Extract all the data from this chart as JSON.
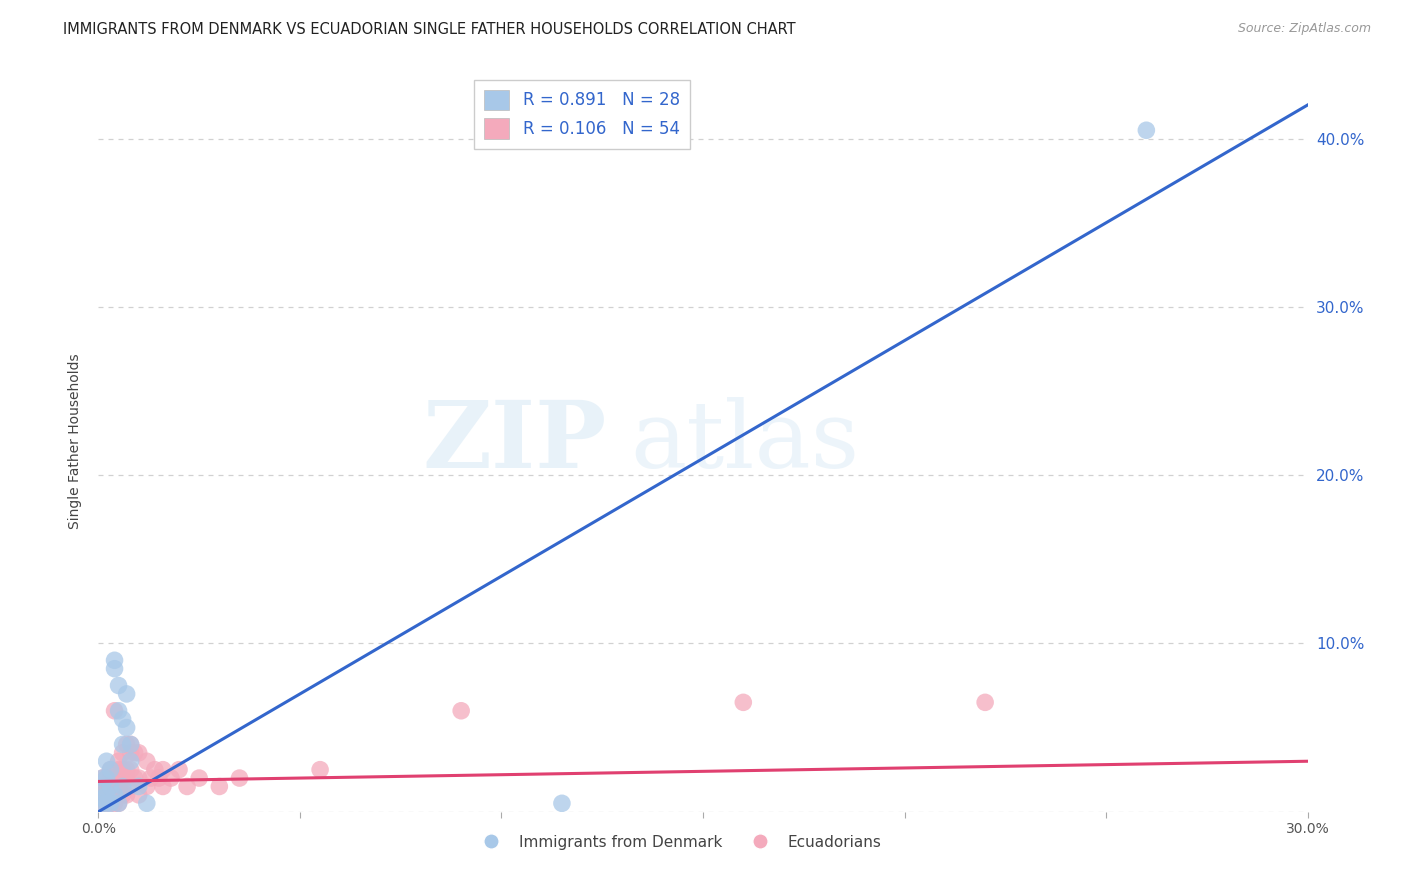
{
  "title": "IMMIGRANTS FROM DENMARK VS ECUADORIAN SINGLE FATHER HOUSEHOLDS CORRELATION CHART",
  "source": "Source: ZipAtlas.com",
  "ylabel": "Single Father Households",
  "xlim": [
    0.0,
    0.3
  ],
  "ylim": [
    0.0,
    0.44
  ],
  "xticks": [
    0.0,
    0.05,
    0.1,
    0.15,
    0.2,
    0.25,
    0.3
  ],
  "yticks": [
    0.0,
    0.1,
    0.2,
    0.3,
    0.4
  ],
  "xtick_labels": [
    "0.0%",
    "",
    "",
    "",
    "",
    "",
    "30.0%"
  ],
  "ytick_labels_right": [
    "",
    "10.0%",
    "20.0%",
    "30.0%",
    "40.0%"
  ],
  "denmark_R": 0.891,
  "denmark_N": 28,
  "ecuador_R": 0.106,
  "ecuador_N": 54,
  "denmark_color": "#a8c8e8",
  "ecuador_color": "#f4aabc",
  "denmark_line_color": "#3366cc",
  "ecuador_line_color": "#e04070",
  "watermark_zip": "ZIP",
  "watermark_atlas": "atlas",
  "denmark_scatter": [
    [
      0.001,
      0.005
    ],
    [
      0.001,
      0.008
    ],
    [
      0.001,
      0.015
    ],
    [
      0.001,
      0.02
    ],
    [
      0.002,
      0.005
    ],
    [
      0.002,
      0.01
    ],
    [
      0.002,
      0.02
    ],
    [
      0.002,
      0.03
    ],
    [
      0.003,
      0.005
    ],
    [
      0.003,
      0.015
    ],
    [
      0.003,
      0.025
    ],
    [
      0.004,
      0.01
    ],
    [
      0.004,
      0.085
    ],
    [
      0.004,
      0.09
    ],
    [
      0.005,
      0.005
    ],
    [
      0.005,
      0.06
    ],
    [
      0.005,
      0.075
    ],
    [
      0.006,
      0.015
    ],
    [
      0.006,
      0.04
    ],
    [
      0.006,
      0.055
    ],
    [
      0.007,
      0.05
    ],
    [
      0.007,
      0.07
    ],
    [
      0.008,
      0.03
    ],
    [
      0.008,
      0.04
    ],
    [
      0.01,
      0.015
    ],
    [
      0.012,
      0.005
    ],
    [
      0.115,
      0.005
    ],
    [
      0.26,
      0.405
    ]
  ],
  "ecuador_scatter": [
    [
      0.001,
      0.005
    ],
    [
      0.001,
      0.01
    ],
    [
      0.001,
      0.015
    ],
    [
      0.001,
      0.02
    ],
    [
      0.002,
      0.005
    ],
    [
      0.002,
      0.01
    ],
    [
      0.002,
      0.015
    ],
    [
      0.002,
      0.02
    ],
    [
      0.003,
      0.005
    ],
    [
      0.003,
      0.01
    ],
    [
      0.003,
      0.02
    ],
    [
      0.003,
      0.025
    ],
    [
      0.004,
      0.005
    ],
    [
      0.004,
      0.015
    ],
    [
      0.004,
      0.02
    ],
    [
      0.004,
      0.06
    ],
    [
      0.005,
      0.005
    ],
    [
      0.005,
      0.015
    ],
    [
      0.005,
      0.025
    ],
    [
      0.005,
      0.03
    ],
    [
      0.006,
      0.01
    ],
    [
      0.006,
      0.02
    ],
    [
      0.006,
      0.025
    ],
    [
      0.006,
      0.035
    ],
    [
      0.007,
      0.01
    ],
    [
      0.007,
      0.02
    ],
    [
      0.007,
      0.025
    ],
    [
      0.007,
      0.04
    ],
    [
      0.008,
      0.015
    ],
    [
      0.008,
      0.025
    ],
    [
      0.008,
      0.035
    ],
    [
      0.008,
      0.04
    ],
    [
      0.009,
      0.02
    ],
    [
      0.009,
      0.035
    ],
    [
      0.01,
      0.01
    ],
    [
      0.01,
      0.02
    ],
    [
      0.01,
      0.035
    ],
    [
      0.012,
      0.015
    ],
    [
      0.012,
      0.03
    ],
    [
      0.013,
      0.02
    ],
    [
      0.014,
      0.025
    ],
    [
      0.015,
      0.02
    ],
    [
      0.016,
      0.015
    ],
    [
      0.016,
      0.025
    ],
    [
      0.018,
      0.02
    ],
    [
      0.02,
      0.025
    ],
    [
      0.022,
      0.015
    ],
    [
      0.025,
      0.02
    ],
    [
      0.03,
      0.015
    ],
    [
      0.035,
      0.02
    ],
    [
      0.055,
      0.025
    ],
    [
      0.09,
      0.06
    ],
    [
      0.16,
      0.065
    ],
    [
      0.22,
      0.065
    ]
  ],
  "denmark_reg_line": [
    [
      0.0,
      0.0
    ],
    [
      0.3,
      0.42
    ]
  ],
  "ecuador_reg_line": [
    [
      0.0,
      0.018
    ],
    [
      0.3,
      0.03
    ]
  ]
}
